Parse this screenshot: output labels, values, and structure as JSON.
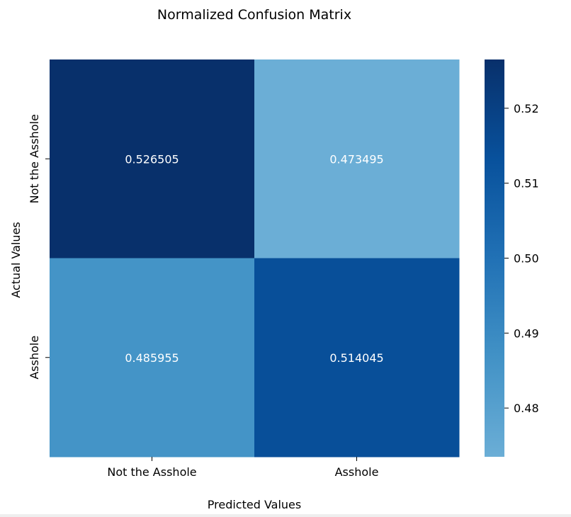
{
  "chart_data": {
    "type": "heatmap",
    "title": "Normalized Confusion Matrix",
    "xlabel": "Predicted Values",
    "ylabel": "Actual Values",
    "x_categories": [
      "Not the Asshole",
      "Asshole"
    ],
    "y_categories": [
      "Not the Asshole",
      "Asshole"
    ],
    "values": [
      [
        0.526505,
        0.473495
      ],
      [
        0.485955,
        0.514045
      ]
    ],
    "annotations": [
      [
        "0.526505",
        "0.473495"
      ],
      [
        "0.485955",
        "0.514045"
      ]
    ],
    "colormap": "Blues",
    "colorbar": {
      "vmin": 0.473495,
      "vmax": 0.526505,
      "ticks": [
        0.48,
        0.49,
        0.5,
        0.51,
        0.52
      ],
      "tick_labels": [
        "0.48",
        "0.49",
        "0.50",
        "0.51",
        "0.52"
      ]
    },
    "colors": {
      "low": "#6baed6",
      "high": "#08306b",
      "annotation_text": "#ffffff"
    }
  }
}
